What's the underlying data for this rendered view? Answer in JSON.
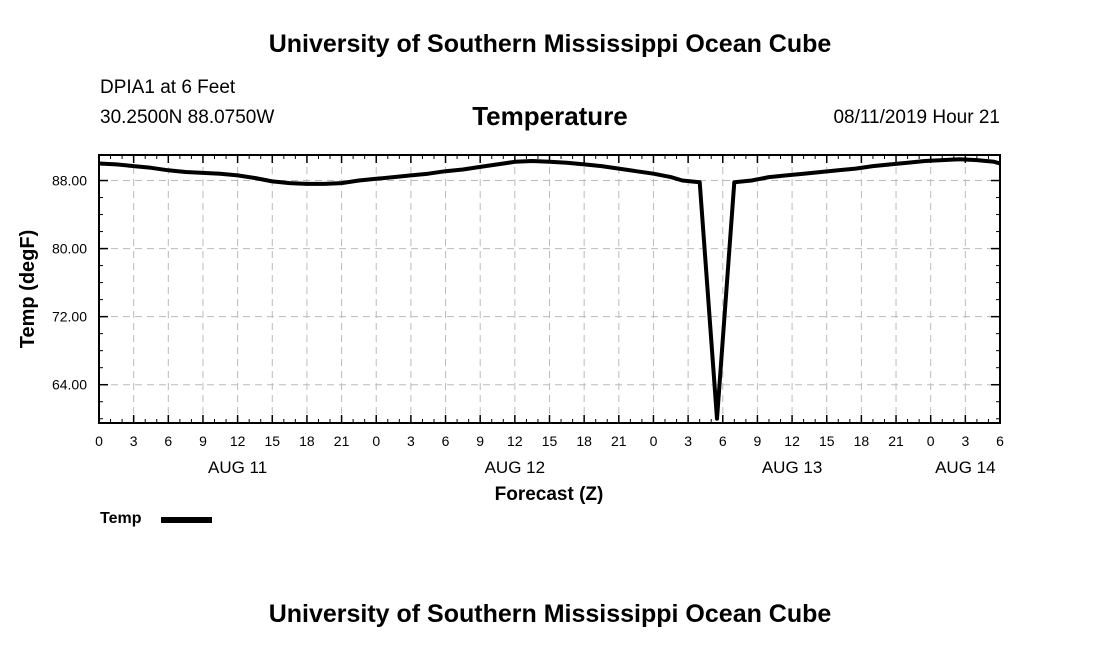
{
  "header": {
    "title": "University of Southern Mississippi Ocean Cube",
    "station": "DPIA1 at 6 Feet",
    "coords": "30.2500N 88.0750W",
    "variable": "Temperature",
    "datestamp": "08/11/2019 Hour 21"
  },
  "footer": {
    "title": "University of Southern Mississippi Ocean Cube"
  },
  "legend": {
    "label": "Temp"
  },
  "colors": {
    "line": "#000000",
    "grid": "#bbbbbb"
  },
  "chart_data": {
    "type": "line",
    "title": "Temperature",
    "xlabel": "Forecast (Z)",
    "ylabel": "Temp (degF)",
    "xlim": [
      0,
      78
    ],
    "ylim": [
      59.5,
      91
    ],
    "yticks": [
      64,
      72,
      80,
      88
    ],
    "ytick_labels": [
      "64.00",
      "72.00",
      "80.00",
      "88.00"
    ],
    "xticks": [
      0,
      3,
      6,
      9,
      12,
      15,
      18,
      21,
      24,
      27,
      30,
      33,
      36,
      39,
      42,
      45,
      48,
      51,
      54,
      57,
      60,
      63,
      66,
      69,
      72,
      75,
      78
    ],
    "xtick_labels": [
      "0",
      "3",
      "6",
      "9",
      "12",
      "15",
      "18",
      "21",
      "0",
      "3",
      "6",
      "9",
      "12",
      "15",
      "18",
      "21",
      "0",
      "3",
      "6",
      "9",
      "12",
      "15",
      "18",
      "21",
      "0",
      "3",
      "6"
    ],
    "day_labels": [
      {
        "x": 12,
        "label": "AUG 11"
      },
      {
        "x": 36,
        "label": "AUG 12"
      },
      {
        "x": 60,
        "label": "AUG 13"
      },
      {
        "x": 75,
        "label": "AUG 14"
      }
    ],
    "grid": true,
    "legend_position": "bottom-left",
    "series": [
      {
        "name": "Temp",
        "x": [
          0,
          1.5,
          3,
          4.5,
          6,
          7.5,
          9,
          10.5,
          12,
          13.5,
          15,
          16.5,
          18,
          19.5,
          21,
          22.5,
          24,
          25.5,
          27,
          28.5,
          30,
          31.5,
          33,
          34.5,
          36,
          37.5,
          39,
          40.5,
          42,
          43.5,
          45,
          46.5,
          48,
          49.5,
          50.5,
          52,
          53.5,
          55,
          56.5,
          58,
          59.5,
          61,
          62.5,
          64,
          65.5,
          67,
          68.5,
          70,
          71.5,
          73,
          74.5,
          76,
          77.5,
          78
        ],
        "values": [
          90.0,
          89.9,
          89.7,
          89.5,
          89.2,
          89.0,
          88.9,
          88.8,
          88.6,
          88.3,
          87.9,
          87.7,
          87.6,
          87.6,
          87.7,
          88.0,
          88.2,
          88.4,
          88.6,
          88.8,
          89.1,
          89.3,
          89.6,
          89.9,
          90.2,
          90.3,
          90.2,
          90.1,
          89.9,
          89.7,
          89.4,
          89.1,
          88.8,
          88.4,
          88.0,
          87.8,
          60.0,
          87.8,
          88.0,
          88.4,
          88.6,
          88.8,
          89.0,
          89.2,
          89.4,
          89.7,
          89.9,
          90.1,
          90.3,
          90.4,
          90.5,
          90.4,
          90.2,
          90.0
        ]
      }
    ]
  }
}
